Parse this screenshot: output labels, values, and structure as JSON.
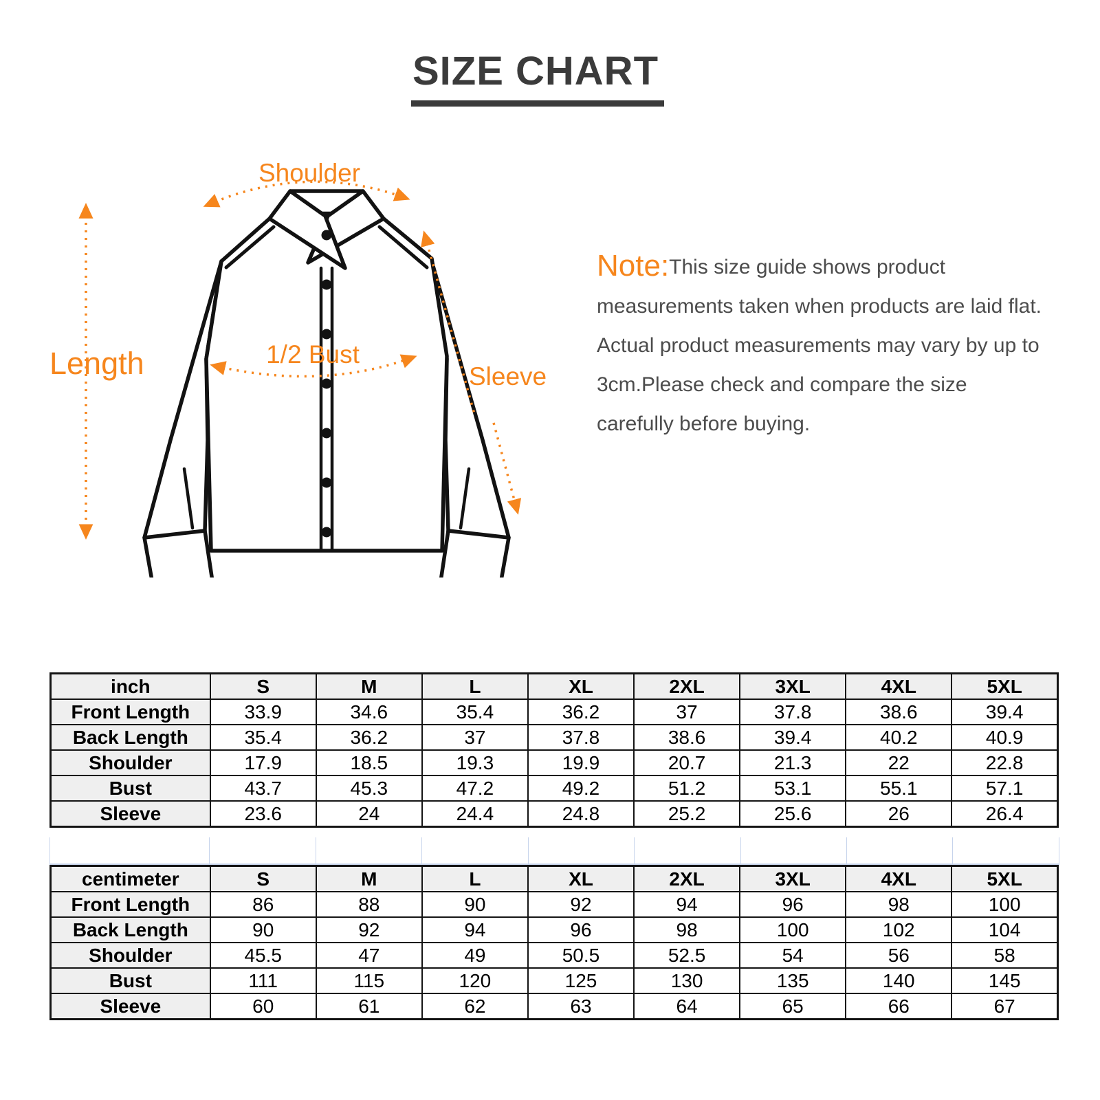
{
  "title": "SIZE CHART",
  "note": {
    "label": "Note:",
    "text": "This size guide shows product measurements taken when products are laid flat. Actual product measurements may vary by up to 3cm.Please check and compare the size carefully before buying."
  },
  "diagram": {
    "labels": {
      "shoulder": "Shoulder",
      "length": "Length",
      "half_bust": "1/2 Bust",
      "sleeve": "Sleeve"
    }
  },
  "colors": {
    "accent_orange": "#F6861D",
    "title_gray": "#3B3B3B",
    "table_border": "#141414",
    "header_cell_bg": "#EFEFEF",
    "spacer_gridline_blue": "#C7D4EC",
    "shirt_outline": "#121212"
  },
  "tables": [
    {
      "unit_header": "inch",
      "columns": [
        "S",
        "M",
        "L",
        "XL",
        "2XL",
        "3XL",
        "4XL",
        "5XL"
      ],
      "rows": [
        {
          "label": "Front Length",
          "values": [
            "33.9",
            "34.6",
            "35.4",
            "36.2",
            "37",
            "37.8",
            "38.6",
            "39.4"
          ]
        },
        {
          "label": "Back Length",
          "values": [
            "35.4",
            "36.2",
            "37",
            "37.8",
            "38.6",
            "39.4",
            "40.2",
            "40.9"
          ]
        },
        {
          "label": "Shoulder",
          "values": [
            "17.9",
            "18.5",
            "19.3",
            "19.9",
            "20.7",
            "21.3",
            "22",
            "22.8"
          ]
        },
        {
          "label": "Bust",
          "values": [
            "43.7",
            "45.3",
            "47.2",
            "49.2",
            "51.2",
            "53.1",
            "55.1",
            "57.1"
          ]
        },
        {
          "label": "Sleeve",
          "values": [
            "23.6",
            "24",
            "24.4",
            "24.8",
            "25.2",
            "25.6",
            "26",
            "26.4"
          ]
        }
      ]
    },
    {
      "unit_header": "centimeter",
      "columns": [
        "S",
        "M",
        "L",
        "XL",
        "2XL",
        "3XL",
        "4XL",
        "5XL"
      ],
      "rows": [
        {
          "label": "Front Length",
          "values": [
            "86",
            "88",
            "90",
            "92",
            "94",
            "96",
            "98",
            "100"
          ]
        },
        {
          "label": "Back Length",
          "values": [
            "90",
            "92",
            "94",
            "96",
            "98",
            "100",
            "102",
            "104"
          ]
        },
        {
          "label": "Shoulder",
          "values": [
            "45.5",
            "47",
            "49",
            "50.5",
            "52.5",
            "54",
            "56",
            "58"
          ]
        },
        {
          "label": "Bust",
          "values": [
            "111",
            "115",
            "120",
            "125",
            "130",
            "135",
            "140",
            "145"
          ]
        },
        {
          "label": "Sleeve",
          "values": [
            "60",
            "61",
            "62",
            "63",
            "64",
            "65",
            "66",
            "67"
          ]
        }
      ]
    }
  ]
}
